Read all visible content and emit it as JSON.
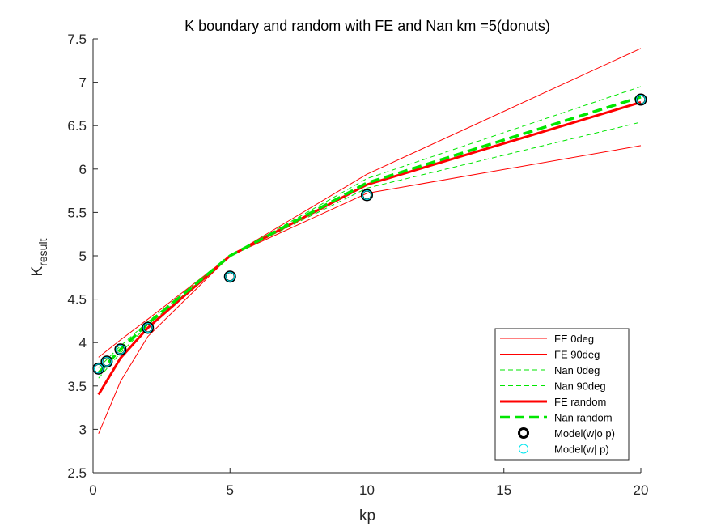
{
  "chart_data": {
    "type": "line",
    "title": "K boundary and random with FE and Nan km =5(donuts)",
    "xlabel": "kp",
    "ylabel_main": "K",
    "ylabel_sub": "result",
    "xlim": [
      0,
      20
    ],
    "ylim": [
      2.5,
      7.5
    ],
    "xticks": [
      "0",
      "5",
      "10",
      "15",
      "20"
    ],
    "yticks": [
      "2.5",
      "3",
      "3.5",
      "4",
      "4.5",
      "5",
      "5.5",
      "6",
      "6.5",
      "7",
      "7.5"
    ],
    "grid": false,
    "legend_position": "bottom-right",
    "colors": {
      "red": "#ff0000",
      "green": "#00e600",
      "cyan": "#00e5ee",
      "black": "#000000"
    },
    "series": [
      {
        "name": "FE 0deg",
        "style": "thin-solid",
        "color": "#ff0000",
        "x": [
          0.2,
          1,
          2,
          5,
          10,
          20
        ],
        "y": [
          3.83,
          4.03,
          4.27,
          5.0,
          5.94,
          7.39
        ]
      },
      {
        "name": "FE 90deg",
        "style": "thin-solid",
        "color": "#ff0000",
        "x": [
          0.2,
          1,
          2,
          5,
          10,
          20
        ],
        "y": [
          2.95,
          3.55,
          4.07,
          5.0,
          5.72,
          6.27
        ]
      },
      {
        "name": "Nan 0deg",
        "style": "thin-dashed",
        "color": "#00e600",
        "x": [
          0.2,
          1,
          2,
          5,
          10,
          20
        ],
        "y": [
          3.71,
          3.96,
          4.24,
          5.0,
          5.89,
          6.95
        ]
      },
      {
        "name": "Nan 90deg",
        "style": "thin-dashed",
        "color": "#00e600",
        "x": [
          0.2,
          1,
          2,
          5,
          10,
          20
        ],
        "y": [
          3.59,
          3.88,
          4.2,
          5.0,
          5.78,
          6.54
        ]
      },
      {
        "name": "FE random",
        "style": "thick-solid",
        "color": "#ff0000",
        "x": [
          0.2,
          1,
          2,
          5,
          10,
          20
        ],
        "y": [
          3.4,
          3.82,
          4.17,
          5.0,
          5.82,
          6.77
        ]
      },
      {
        "name": "Nan random",
        "style": "thick-dashed",
        "color": "#00e600",
        "x": [
          0.2,
          1,
          2,
          5,
          10,
          20
        ],
        "y": [
          3.65,
          3.92,
          4.22,
          5.0,
          5.84,
          6.83
        ]
      },
      {
        "name": "Model(w|o p)",
        "style": "marker-black",
        "color": "#000000",
        "x": [
          0.2,
          0.5,
          1,
          2,
          5,
          10,
          20
        ],
        "y": [
          3.7,
          3.78,
          3.92,
          4.17,
          4.76,
          5.7,
          6.8
        ]
      },
      {
        "name": "Model(w| p)",
        "style": "marker-cyan",
        "color": "#00e5ee",
        "x": [
          0.2,
          0.5,
          1,
          2,
          5,
          10,
          20
        ],
        "y": [
          3.7,
          3.78,
          3.92,
          4.17,
          4.76,
          5.7,
          6.8
        ]
      }
    ]
  }
}
